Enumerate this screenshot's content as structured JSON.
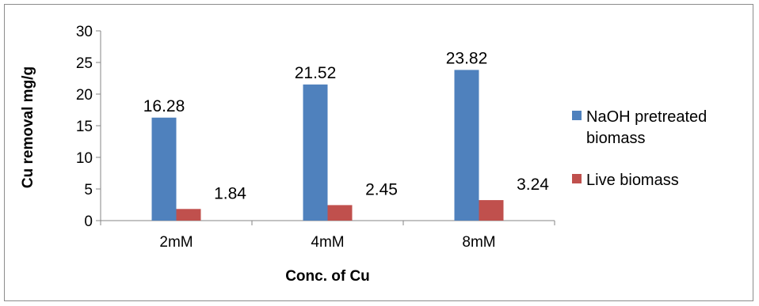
{
  "chart_data": {
    "type": "bar",
    "categories": [
      "2mM",
      "4mM",
      "8mM"
    ],
    "series": [
      {
        "name": "NaOH pretreated biomass",
        "name_lines": [
          "NaOH pretreated",
          "biomass"
        ],
        "values": [
          16.28,
          21.52,
          23.82
        ],
        "labels": [
          "16.28",
          "21.52",
          "23.82"
        ],
        "color": "#4f81bd"
      },
      {
        "name": "Live biomass",
        "name_lines": [
          "Live biomass"
        ],
        "values": [
          1.84,
          2.45,
          3.24
        ],
        "labels": [
          "1.84",
          "2.45",
          "3.24"
        ],
        "color": "#c0504d"
      }
    ],
    "xlabel": "Conc. of Cu",
    "ylabel": "Cu removal mg/g",
    "ylim": [
      0,
      30
    ],
    "yticks": [
      "0",
      "5",
      "10",
      "15",
      "20",
      "25",
      "30"
    ],
    "grid": false,
    "legend": "right"
  }
}
